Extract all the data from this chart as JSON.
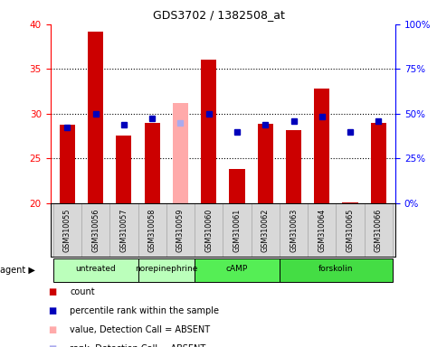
{
  "title": "GDS3702 / 1382508_at",
  "samples": [
    "GSM310055",
    "GSM310056",
    "GSM310057",
    "GSM310058",
    "GSM310059",
    "GSM310060",
    "GSM310061",
    "GSM310062",
    "GSM310063",
    "GSM310064",
    "GSM310065",
    "GSM310066"
  ],
  "red_values": [
    28.8,
    39.2,
    27.5,
    29.0,
    null,
    36.0,
    23.8,
    28.9,
    28.2,
    32.8,
    20.1,
    29.0
  ],
  "pink_values": [
    null,
    null,
    null,
    null,
    31.2,
    null,
    null,
    null,
    null,
    null,
    null,
    null
  ],
  "blue_values": [
    28.5,
    30.0,
    28.8,
    29.5,
    null,
    30.0,
    28.0,
    28.8,
    29.2,
    29.7,
    28.0,
    29.2
  ],
  "light_blue_values": [
    null,
    null,
    null,
    null,
    29.0,
    null,
    null,
    null,
    null,
    null,
    null,
    null
  ],
  "ylim_left": [
    20,
    40
  ],
  "ylim_right": [
    0,
    100
  ],
  "yticks_left": [
    20,
    25,
    30,
    35,
    40
  ],
  "yticks_right": [
    0,
    25,
    50,
    75,
    100
  ],
  "ytick_labels_right": [
    "0%",
    "25%",
    "50%",
    "75%",
    "100%"
  ],
  "grid_values": [
    25,
    30,
    35
  ],
  "bar_color_red": "#cc0000",
  "bar_color_pink": "#ffaaaa",
  "dot_color_blue": "#0000bb",
  "dot_color_lightblue": "#aaaaee",
  "agent_groups": [
    {
      "label": "untreated",
      "cols": [
        0,
        1,
        2
      ],
      "color": "#bbffbb"
    },
    {
      "label": "norepinephrine",
      "cols": [
        3,
        4
      ],
      "color": "#bbffbb"
    },
    {
      "label": "cAMP",
      "cols": [
        5,
        6,
        7
      ],
      "color": "#55ee55"
    },
    {
      "label": "forskolin",
      "cols": [
        8,
        9,
        10,
        11
      ],
      "color": "#44dd44"
    }
  ],
  "bar_width": 0.55,
  "figsize": [
    4.83,
    3.84
  ],
  "dpi": 100
}
